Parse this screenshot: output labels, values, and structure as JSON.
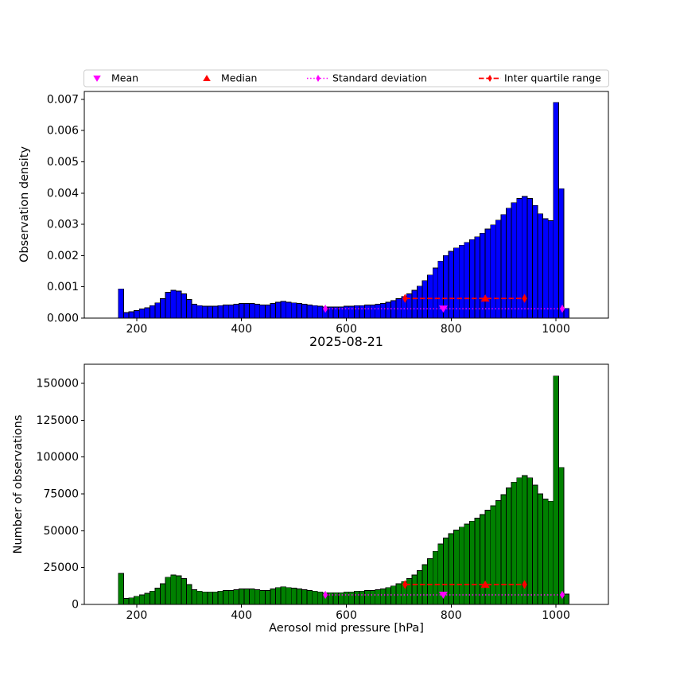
{
  "figure": {
    "title": "2025-08-21",
    "xlabel": "Aerosol mid pressure [hPa]",
    "background": "#ffffff"
  },
  "legend": {
    "items": [
      {
        "label": "Mean",
        "marker": "triangle-down",
        "color": "#ff00ff",
        "line": "none"
      },
      {
        "label": "Median",
        "marker": "triangle-up",
        "color": "#ff0000",
        "line": "none"
      },
      {
        "label": "Standard deviation",
        "marker": "thin-diamond",
        "color": "#ff00ff",
        "line": "dotted"
      },
      {
        "label": "Inter quartile range",
        "marker": "thin-diamond",
        "color": "#ff0000",
        "line": "dashed"
      }
    ]
  },
  "colors": {
    "mean": "#ff00ff",
    "median": "#ff0000",
    "std": "#ff00ff",
    "iqr": "#ff0000",
    "density_bars": "#0000ff",
    "count_bars": "#008000",
    "bar_edge": "#000000"
  },
  "chart_data": [
    {
      "type": "bar",
      "name": "observation-density-histogram",
      "ylabel": "Observation density",
      "bar_color": "#0000ff",
      "edge_color": "#000000",
      "bin_start": 165,
      "bin_width": 10,
      "values": [
        0.000935,
        0.000178,
        0.0002,
        0.000245,
        0.000289,
        0.000334,
        0.000401,
        0.00049,
        0.000623,
        0.000823,
        0.00089,
        0.000868,
        0.000779,
        0.000601,
        0.000445,
        0.000401,
        0.000378,
        0.000378,
        0.000378,
        0.000401,
        0.000423,
        0.000423,
        0.000445,
        0.000467,
        0.000467,
        0.000467,
        0.000445,
        0.000423,
        0.000423,
        0.000467,
        0.000512,
        0.000534,
        0.000512,
        0.00049,
        0.000467,
        0.000445,
        0.000423,
        0.000401,
        0.000378,
        0.000356,
        0.000356,
        0.000356,
        0.000356,
        0.000378,
        0.000378,
        0.000401,
        0.000401,
        0.000423,
        0.000423,
        0.000445,
        0.000467,
        0.000512,
        0.000556,
        0.000623,
        0.00069,
        0.000779,
        0.00089,
        0.001024,
        0.001202,
        0.00138,
        0.001602,
        0.001825,
        0.002003,
        0.002136,
        0.002247,
        0.002336,
        0.002425,
        0.002514,
        0.002603,
        0.002715,
        0.002848,
        0.002981,
        0.003137,
        0.003315,
        0.003516,
        0.003694,
        0.003827,
        0.003894,
        0.003827,
        0.003605,
        0.003338,
        0.003182,
        0.003115,
        0.006898,
        0.004139,
        0.000312
      ],
      "xlim": [
        100,
        1100
      ],
      "ylim": [
        0,
        0.00725
      ],
      "xticks": {
        "values": [
          200,
          400,
          600,
          800,
          1000
        ],
        "labels": [
          "200",
          "400",
          "600",
          "800",
          "1000"
        ]
      },
      "yticks": {
        "values": [
          0,
          0.001,
          0.002,
          0.003,
          0.004,
          0.005,
          0.006,
          0.007
        ],
        "labels": [
          "0.000",
          "0.001",
          "0.002",
          "0.003",
          "0.004",
          "0.005",
          "0.006",
          "0.007"
        ]
      },
      "markers": {
        "mean": 785,
        "median": 865,
        "std_range": [
          560,
          1012
        ],
        "iqr_range": [
          712,
          940
        ],
        "std_line_y": 0.0003,
        "iqr_line_y": 0.00063
      }
    },
    {
      "type": "bar",
      "name": "observations-count-histogram",
      "ylabel": "Number of observations",
      "bar_color": "#008000",
      "edge_color": "#000000",
      "bin_start": 165,
      "bin_width": 10,
      "values": [
        21000,
        4000,
        4500,
        5500,
        6500,
        7500,
        9000,
        11000,
        14000,
        18500,
        20000,
        19500,
        17500,
        13500,
        10000,
        9000,
        8500,
        8500,
        8500,
        9000,
        9500,
        9500,
        10000,
        10500,
        10500,
        10500,
        10000,
        9500,
        9500,
        10500,
        11500,
        12000,
        11500,
        11000,
        10500,
        10000,
        9500,
        9000,
        8500,
        8000,
        8000,
        8000,
        8000,
        8500,
        8500,
        9000,
        9000,
        9500,
        9500,
        10000,
        10500,
        11500,
        12500,
        14000,
        15500,
        17500,
        20000,
        23000,
        27000,
        31000,
        36000,
        41000,
        45000,
        48000,
        50500,
        52500,
        54500,
        56500,
        58500,
        61000,
        64000,
        67000,
        70500,
        74500,
        79000,
        83000,
        86000,
        87500,
        86000,
        81000,
        75000,
        71500,
        70000,
        155000,
        93000,
        7000
      ],
      "xlim": [
        100,
        1100
      ],
      "ylim": [
        0,
        163000
      ],
      "xticks": {
        "values": [
          200,
          400,
          600,
          800,
          1000
        ],
        "labels": [
          "200",
          "400",
          "600",
          "800",
          "1000"
        ]
      },
      "yticks": {
        "values": [
          0,
          25000,
          50000,
          75000,
          100000,
          125000,
          150000
        ],
        "labels": [
          "0",
          "25000",
          "50000",
          "75000",
          "100000",
          "125000",
          "150000"
        ]
      },
      "markers": {
        "mean": 785,
        "median": 865,
        "std_range": [
          560,
          1012
        ],
        "iqr_range": [
          712,
          940
        ],
        "std_line_y": 6500,
        "iqr_line_y": 13500
      }
    }
  ]
}
